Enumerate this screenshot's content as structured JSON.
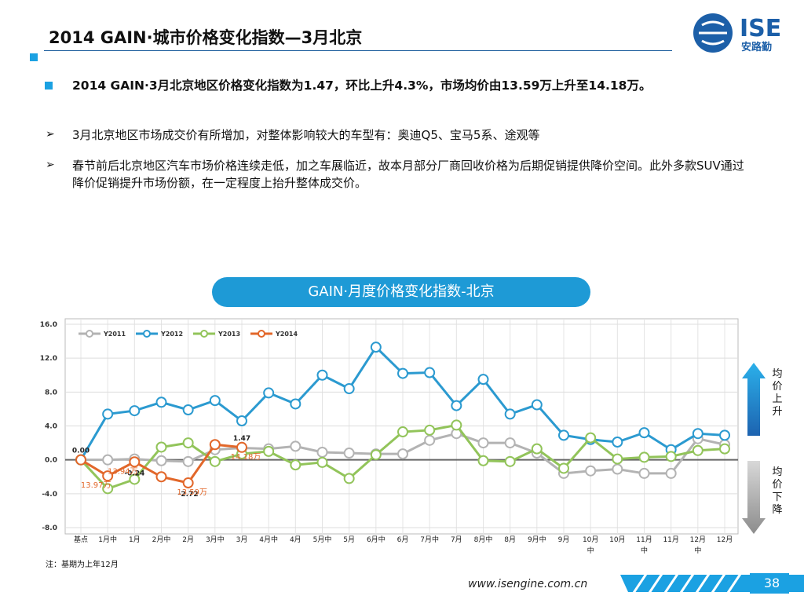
{
  "header": {
    "title": "2014 GAIN·城市价格变化指数—3月北京",
    "logo": "ISE",
    "logo_sub": "安路勤"
  },
  "bullets": [
    "2014 GAIN·3月北京地区价格变化指数为1.47，环比上升4.3%，市场均价由13.59万上升至14.18万。",
    "3月北京地区市场成交价有所增加，对整体影响较大的车型有：奥迪Q5、宝马5系、途观等",
    "春节前后北京地区汽车市场价格连续走低，加之车展临近，故本月部分厂商回收价格为后期促销提供降价空间。此外多款SUV通过降价促销提升市场份额，在一定程度上抬升整体成交价。"
  ],
  "chart_data": {
    "type": "line",
    "title": "GAIN·月度价格变化指数-北京",
    "categories": [
      "基点",
      "1月中",
      "1月",
      "2月中",
      "2月",
      "3月中",
      "3月",
      "4月中",
      "4月",
      "5月中",
      "5月",
      "6月中",
      "6月",
      "7月中",
      "7月",
      "8月中",
      "8月",
      "9月中",
      "9月",
      "10月中",
      "10月",
      "11月中",
      "11月",
      "12月中",
      "12月"
    ],
    "series": [
      {
        "name": "Y2011",
        "color": "#b3b3b3",
        "values": [
          0,
          0,
          0.1,
          -0.1,
          -0.2,
          1.2,
          1.4,
          1.3,
          1.6,
          0.9,
          0.8,
          0.7,
          0.7,
          2.3,
          3.1,
          2.0,
          2.0,
          0.8,
          -1.6,
          -1.3,
          -1.1,
          -1.6,
          -1.6,
          2.5,
          1.8
        ]
      },
      {
        "name": "Y2012",
        "color": "#2b9ad0",
        "values": [
          0,
          5.4,
          5.8,
          6.8,
          5.9,
          7.0,
          4.6,
          7.9,
          6.6,
          10.0,
          8.4,
          13.3,
          10.2,
          10.3,
          6.4,
          9.5,
          5.4,
          6.5,
          2.9,
          2.4,
          2.1,
          3.2,
          1.2,
          3.1,
          2.9
        ]
      },
      {
        "name": "Y2013",
        "color": "#92c45a",
        "values": [
          0,
          -3.4,
          -2.3,
          1.5,
          2.0,
          -0.2,
          0.7,
          1.0,
          -0.6,
          -0.3,
          -2.2,
          0.6,
          3.3,
          3.5,
          4.1,
          -0.1,
          -0.2,
          1.3,
          -1.0,
          2.6,
          0.1,
          0.3,
          0.4,
          1.1,
          1.3
        ]
      },
      {
        "name": "Y2014",
        "color": "#e2672a",
        "values": [
          0,
          -1.9,
          -0.24,
          -2.0,
          -2.72,
          1.8,
          1.47,
          null,
          null,
          null,
          null,
          null,
          null,
          null,
          null,
          null,
          null,
          null,
          null,
          null,
          null,
          null,
          null,
          null,
          null
        ],
        "value_labels": [
          "0.00",
          null,
          "-0.24",
          null,
          "-2.72",
          null,
          "1.47",
          null,
          null,
          null,
          null,
          null,
          null,
          null,
          null,
          null,
          null,
          null,
          null,
          null,
          null,
          null,
          null,
          null,
          null
        ]
      }
    ],
    "annotations": [
      {
        "text": "13.97万",
        "x": "1月中"
      },
      {
        "text": "13.94万",
        "x": "1月"
      },
      {
        "text": "13.59万",
        "x": "2月"
      },
      {
        "text": "14.18万",
        "x": "3月"
      }
    ],
    "ylim": [
      -8,
      16
    ],
    "yticks": [
      {
        "value": 16,
        "label": "16.0"
      },
      {
        "value": 12,
        "label": "12.0"
      },
      {
        "value": 8,
        "label": "8.0"
      },
      {
        "value": 4,
        "label": "4.0"
      },
      {
        "value": 0,
        "label": "0.0"
      },
      {
        "value": -4,
        "label": "-4.0"
      },
      {
        "value": -8,
        "label": "-8.0"
      }
    ],
    "grid": true,
    "legend": "top-left",
    "up_label": "均价上升",
    "down_label": "均价下降"
  },
  "footnote": "注：基期为上年12月",
  "footer": {
    "url": "www.isengine.com.cn",
    "page": "38"
  }
}
